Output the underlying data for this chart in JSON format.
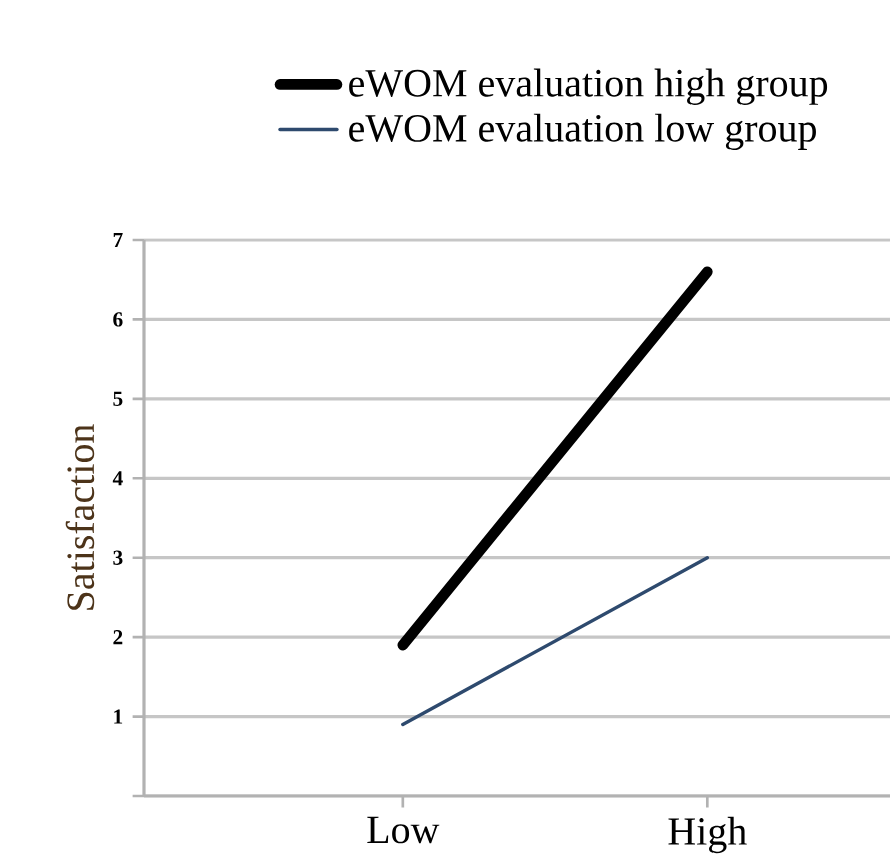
{
  "chart_data": {
    "type": "line",
    "ylabel": "Satisfaction",
    "categories": [
      "Low",
      "High"
    ],
    "series": [
      {
        "name": "eWOM evaluation   high  group",
        "color": "#000000",
        "values": [
          1.9,
          6.6
        ]
      },
      {
        "name": "eWOM evaluation   low  group",
        "color": "#2e4a6e",
        "values": [
          0.9,
          3.0
        ]
      }
    ],
    "ylim": [
      0,
      7
    ],
    "yticks": [
      {
        "value": 0,
        "label": null
      },
      1,
      2,
      3,
      4,
      5,
      6,
      7
    ],
    "grid": "y",
    "legend": "top",
    "line_style": "solid",
    "marker": "none"
  }
}
